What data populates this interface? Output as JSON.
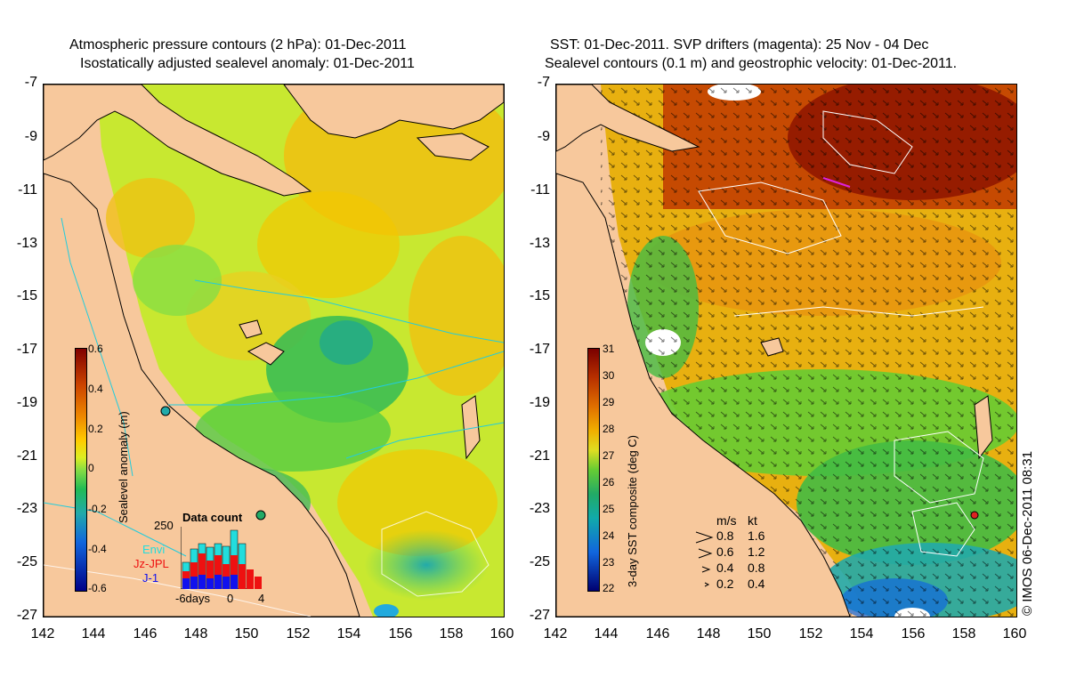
{
  "left_panel": {
    "title_line1": "Atmospheric pressure contours (2 hPa): 01-Dec-2011",
    "title_line2": "Isostatically adjusted sealevel anomaly: 01-Dec-2011",
    "y_ticks": [
      "-7",
      "-9",
      "-11",
      "-13",
      "-15",
      "-17",
      "-19",
      "-21",
      "-23",
      "-25",
      "-27"
    ],
    "x_ticks": [
      "142",
      "144",
      "146",
      "148",
      "150",
      "152",
      "154",
      "156",
      "158",
      "160"
    ],
    "colorbar": {
      "title": "Sealevel anomaly (m)",
      "labels": [
        "0.6",
        "0.4",
        "0.2",
        "0",
        "-0.2",
        "-0.4",
        "-0.6"
      ]
    },
    "data_count": {
      "title": "Data count",
      "max_label": "250",
      "series": [
        {
          "name": "Envi",
          "color": "#22dddd"
        },
        {
          "name": "Jz-JPL",
          "color": "#ee1111"
        },
        {
          "name": "J-1",
          "color": "#1111ee"
        }
      ],
      "x_labels": [
        "-6days",
        "0",
        "4"
      ]
    }
  },
  "right_panel": {
    "title_line1": "SST: 01-Dec-2011. SVP drifters (magenta): 25 Nov - 04 Dec",
    "title_line2": "Sealevel contours (0.1 m) and geostrophic velocity: 01-Dec-2011.",
    "y_ticks": [
      "-7",
      "-9",
      "-11",
      "-13",
      "-15",
      "-17",
      "-19",
      "-21",
      "-23",
      "-25",
      "-27"
    ],
    "x_ticks": [
      "142",
      "144",
      "146",
      "148",
      "150",
      "152",
      "154",
      "156",
      "158",
      "160"
    ],
    "colorbar": {
      "title": "3-day SST composite (deg C)",
      "labels": [
        "31",
        "30",
        "29",
        "28",
        "27",
        "26",
        "25",
        "24",
        "23",
        "22"
      ]
    },
    "velocity_legend": {
      "header_ms": "m/s",
      "header_kt": "kt",
      "rows": [
        {
          "ms": "0.8",
          "kt": "1.6"
        },
        {
          "ms": "0.6",
          "kt": "1.2"
        },
        {
          "ms": "0.4",
          "kt": "0.8"
        },
        {
          "ms": "0.2",
          "kt": "0.4"
        }
      ]
    }
  },
  "credit": "© IMOS 06-Dec-2011 08:31",
  "colors": {
    "land": "#f7c89c",
    "sla_scale": [
      "#800000",
      "#cc4400",
      "#ee8800",
      "#ffcc00",
      "#ddee22",
      "#88dd44",
      "#22bb55",
      "#22aaaa",
      "#1166dd",
      "#000088"
    ],
    "sst_scale": [
      "#7a0000",
      "#b83000",
      "#e07000",
      "#f0b000",
      "#dede22",
      "#66cc33",
      "#22aa66",
      "#11aaaa",
      "#1166dd",
      "#000070"
    ]
  }
}
